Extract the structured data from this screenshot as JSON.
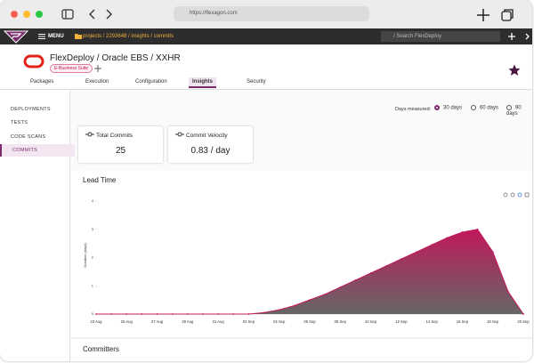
{
  "browser": {
    "url": "https://flexagon.com"
  },
  "nav": {
    "menu": "MENU",
    "breadcrumb": "projects / 2293648 / insights / commits",
    "search": "/ Search FlexDeploy"
  },
  "header": {
    "title": "FlexDeploy / Oracle EBS / XXHR",
    "badge": "E-Business Suite"
  },
  "tabs": [
    "Packages",
    "Execution",
    "Configuration",
    "Insights",
    "Security"
  ],
  "sidebar": [
    "DEPLOYMENTS",
    "TESTS",
    "CODE SCANS",
    "COMMITS"
  ],
  "filters": {
    "label": "Days measured:",
    "options": [
      "30 days",
      "60 days",
      "90 days"
    ]
  },
  "cards": [
    {
      "title": "Total Commits",
      "value": 25
    },
    {
      "title": "Commit Velocity",
      "value": "0.83 / day"
    }
  ],
  "lead_time": {
    "type": "area",
    "title": "Lead Time",
    "y_label": "Duration (days)",
    "x": [
      "23 Aug",
      null,
      "25 Aug",
      null,
      "27 Aug",
      null,
      "29 Aug",
      null,
      "31 Aug",
      null,
      "02 Sep",
      null,
      "04 Sep",
      null,
      "06 Sep",
      null,
      "08 Sep",
      null,
      "10 Sep",
      null,
      "12 Sep",
      null,
      "14 Sep",
      null,
      "16 Sep",
      null,
      "18 Sep",
      null,
      "20 Sep"
    ],
    "values": [
      0,
      0,
      0,
      0,
      0,
      0,
      0,
      0,
      0,
      0,
      0,
      0.05,
      0.15,
      0.3,
      0.5,
      0.7,
      0.95,
      1.2,
      1.45,
      1.7,
      1.95,
      2.2,
      2.45,
      2.7,
      2.9,
      3,
      2.2,
      0.8,
      0
    ],
    "ylim": [
      0,
      4
    ],
    "yticks": [
      0,
      1,
      2,
      3,
      4
    ],
    "color": "#c2185b"
  },
  "committers": {
    "title": "Committers"
  }
}
